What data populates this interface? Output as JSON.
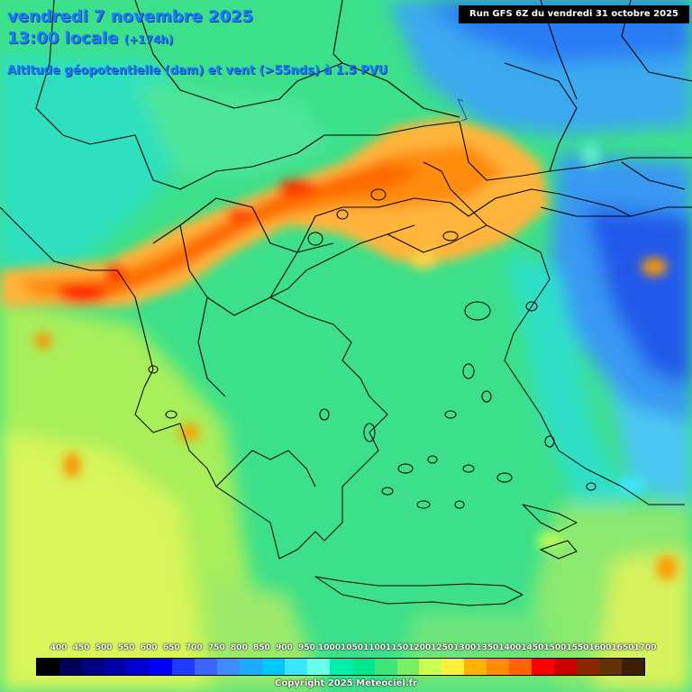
{
  "header": {
    "date": "vendredi 7 novembre 2025",
    "time": "13:00 locale",
    "lead": "(+174h)",
    "parameter": "Altitude géopotentielle (dam) et vent (>55nds) à 1.5 PVU",
    "run": "Run GFS 6Z du vendredi 31 octobre 2025"
  },
  "legend": {
    "labels": [
      "400",
      "450",
      "500",
      "550",
      "600",
      "650",
      "700",
      "750",
      "800",
      "850",
      "900",
      "950",
      "1000",
      "1050",
      "1100",
      "1150",
      "1200",
      "1250",
      "1300",
      "1350",
      "1400",
      "1450",
      "1500",
      "1550",
      "1600",
      "1650",
      "1700"
    ],
    "colors": [
      "#000000",
      "#00005a",
      "#000082",
      "#0000a8",
      "#0000d2",
      "#0000ff",
      "#1e3cff",
      "#3c64ff",
      "#3c8cff",
      "#1eaaff",
      "#00c8ff",
      "#3ce6ff",
      "#64ffe6",
      "#00f0aa",
      "#00e68c",
      "#3ce678",
      "#78f064",
      "#c8ff50",
      "#fff03c",
      "#ffb400",
      "#ff8c00",
      "#ff6400",
      "#ff0000",
      "#c80000",
      "#8c2800",
      "#643200",
      "#3c1e00"
    ]
  },
  "footer": {
    "copyright": "Copyright 2025 Meteociel.fr"
  }
}
